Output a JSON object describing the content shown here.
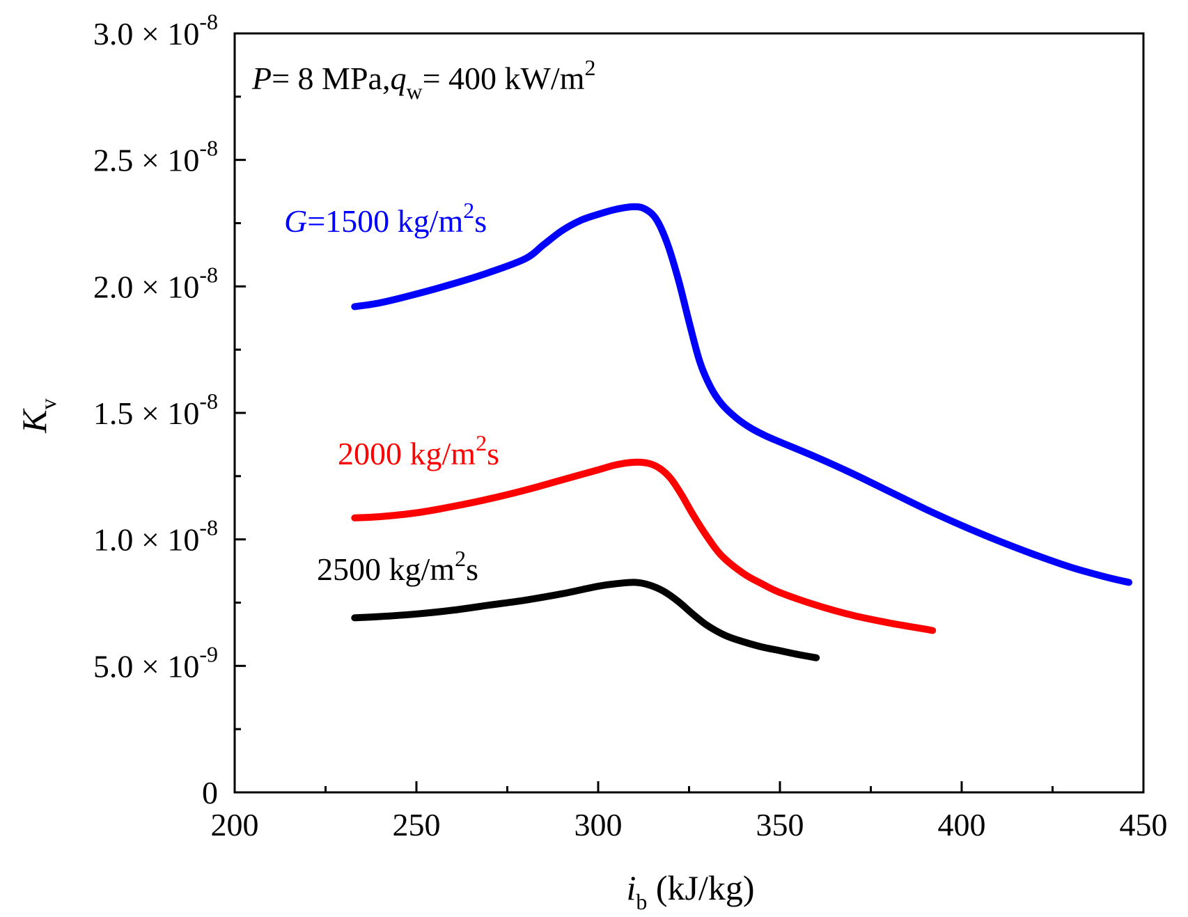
{
  "chart_data": {
    "type": "line",
    "xlabel": {
      "main": "i",
      "sub": "b",
      "rest": " (kJ/kg)"
    },
    "ylabel": {
      "main": "K",
      "sub": "v"
    },
    "xlim": [
      200,
      450
    ],
    "ylim": [
      0,
      3e-08
    ],
    "x_ticks": [
      {
        "value": 200,
        "label": "200"
      },
      {
        "value": 250,
        "label": "250"
      },
      {
        "value": 300,
        "label": "300"
      },
      {
        "value": 350,
        "label": "350"
      },
      {
        "value": 400,
        "label": "400"
      },
      {
        "value": 450,
        "label": "450"
      }
    ],
    "x_minor_ticks": [
      225,
      275,
      325,
      375,
      425
    ],
    "y_ticks": [
      {
        "value": 0,
        "mantissa": "0",
        "exp": ""
      },
      {
        "value": 5e-09,
        "mantissa": "5.0",
        "exp": "-9"
      },
      {
        "value": 1e-08,
        "mantissa": "1.0",
        "exp": "-8"
      },
      {
        "value": 1.5e-08,
        "mantissa": "1.5",
        "exp": "-8"
      },
      {
        "value": 2e-08,
        "mantissa": "2.0",
        "exp": "-8"
      },
      {
        "value": 2.5e-08,
        "mantissa": "2.5",
        "exp": "-8"
      },
      {
        "value": 3e-08,
        "mantissa": "3.0",
        "exp": "-8"
      }
    ],
    "y_minor_ticks": [
      2.5e-09,
      7.5e-09,
      1.25e-08,
      1.75e-08,
      2.25e-08,
      2.75e-08
    ],
    "times_symbol": "×",
    "base": "10",
    "annotation": {
      "p_var": "P",
      "p_text": "= 8 MPa,",
      "q_var": "q",
      "q_sub": "w",
      "q_text": "= 400 kW/m",
      "q_sup": "2"
    },
    "series": [
      {
        "name": "G=1500 kg/m2s",
        "label_prefix_italic": "G",
        "label_text": "=1500 kg/m",
        "label_sup": "2",
        "label_suffix": "s",
        "color": "#0000FF",
        "x": [
          233,
          240,
          250,
          260,
          270,
          280,
          285,
          290,
          295,
          300,
          305,
          310,
          313,
          316,
          319,
          322,
          325,
          328,
          331,
          334,
          338,
          342,
          346,
          350,
          360,
          370,
          380,
          390,
          400,
          410,
          420,
          430,
          440,
          446
        ],
        "y": [
          1.92e-08,
          1.935e-08,
          1.97e-08,
          2.01e-08,
          2.055e-08,
          2.11e-08,
          2.165e-08,
          2.22e-08,
          2.26e-08,
          2.285e-08,
          2.305e-08,
          2.315e-08,
          2.305e-08,
          2.265e-08,
          2.17e-08,
          2.03e-08,
          1.86e-08,
          1.7e-08,
          1.6e-08,
          1.535e-08,
          1.48e-08,
          1.44e-08,
          1.41e-08,
          1.385e-08,
          1.325e-08,
          1.26e-08,
          1.19e-08,
          1.12e-08,
          1.055e-08,
          9.95e-09,
          9.4e-09,
          8.9e-09,
          8.5e-09,
          8.3e-09
        ]
      },
      {
        "name": "2000 kg/m2s",
        "label_prefix_italic": "",
        "label_text": "2000 kg/m",
        "label_sup": "2",
        "label_suffix": "s",
        "color": "#FF0000",
        "x": [
          233,
          240,
          250,
          260,
          270,
          280,
          290,
          300,
          305,
          310,
          314,
          317,
          320,
          323,
          326,
          330,
          334,
          340,
          345,
          350,
          360,
          370,
          380,
          390,
          392
        ],
        "y": [
          1.085e-08,
          1.09e-08,
          1.105e-08,
          1.13e-08,
          1.16e-08,
          1.195e-08,
          1.235e-08,
          1.275e-08,
          1.295e-08,
          1.305e-08,
          1.3e-08,
          1.28e-08,
          1.24e-08,
          1.175e-08,
          1.1e-08,
          1.01e-08,
          9.35e-09,
          8.65e-09,
          8.25e-09,
          7.9e-09,
          7.4e-09,
          7e-09,
          6.7e-09,
          6.45e-09,
          6.4e-09
        ]
      },
      {
        "name": "2500 kg/m2s",
        "label_prefix_italic": "",
        "label_text": "2500 kg/m",
        "label_sup": "2",
        "label_suffix": "s",
        "color": "#000000",
        "x": [
          233,
          240,
          250,
          260,
          270,
          280,
          290,
          300,
          305,
          310,
          314,
          318,
          322,
          326,
          330,
          335,
          340,
          345,
          350,
          355,
          360
        ],
        "y": [
          6.9e-09,
          6.95e-09,
          7.05e-09,
          7.2e-09,
          7.4e-09,
          7.6e-09,
          7.85e-09,
          8.15e-09,
          8.25e-09,
          8.3e-09,
          8.2e-09,
          7.95e-09,
          7.55e-09,
          7.05e-09,
          6.6e-09,
          6.2e-09,
          5.95e-09,
          5.75e-09,
          5.6e-09,
          5.45e-09,
          5.32e-09
        ]
      }
    ]
  }
}
